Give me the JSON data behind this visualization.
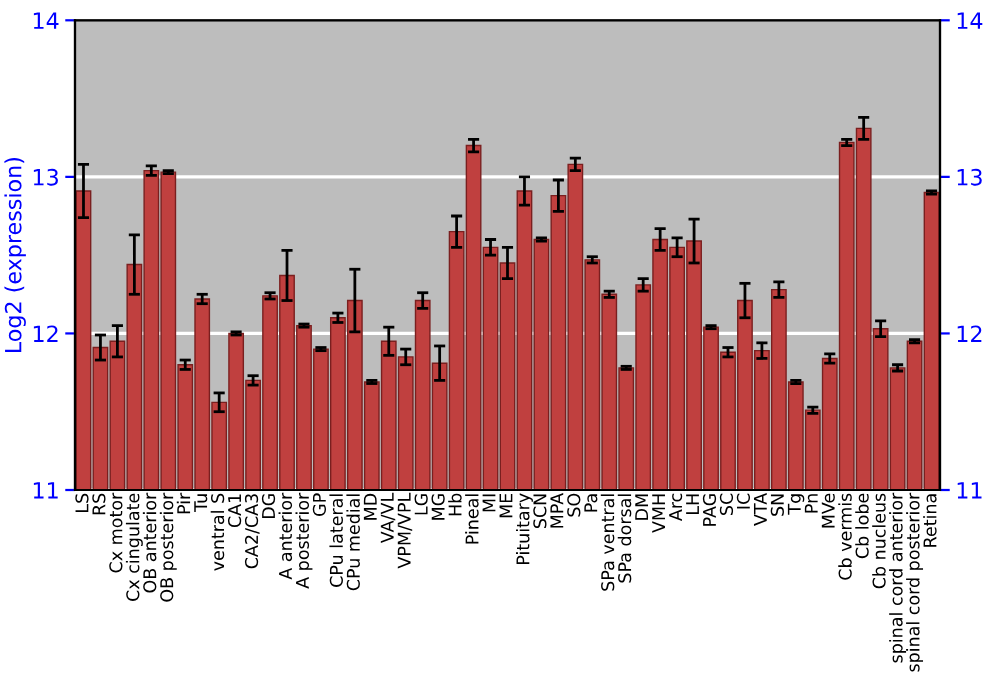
{
  "chart_data": {
    "type": "bar",
    "ylabel": "Log2 (expression)",
    "categories": [
      "LS",
      "RS",
      "Cx motor",
      "Cx cingulate",
      "OB anterior",
      "OB posterior",
      "Pir",
      "Tu",
      "ventral S",
      "CA1",
      "CA2/CA3",
      "DG",
      "A anterior",
      "A posterior",
      "GP",
      "CPu lateral",
      "CPu medial",
      "MD",
      "VA/VL",
      "VPM/VPL",
      "LG",
      "MG",
      "Hb",
      "Pineal",
      "MI",
      "ME",
      "Pituitary",
      "SCN",
      "MPA",
      "SO",
      "Pa",
      "SPa ventral",
      "SPa dorsal",
      "DM",
      "VMH",
      "Arc",
      "LH",
      "PAG",
      "SC",
      "IC",
      "VTA",
      "SN",
      "Tg",
      "Pn",
      "MVe",
      "Cb vermis",
      "Cb lobe",
      "Cb nucleus",
      "spinal cord anterior",
      "spinal cord posterior",
      "Retina"
    ],
    "values": [
      12.91,
      11.91,
      11.95,
      12.44,
      13.04,
      13.03,
      11.8,
      12.22,
      11.56,
      12.0,
      11.7,
      12.24,
      12.37,
      12.05,
      11.9,
      12.1,
      12.21,
      11.69,
      11.95,
      11.85,
      12.21,
      11.81,
      12.65,
      13.2,
      12.55,
      12.45,
      12.91,
      12.6,
      12.88,
      13.08,
      12.47,
      12.25,
      11.78,
      12.31,
      12.6,
      12.55,
      12.59,
      12.04,
      11.88,
      12.21,
      11.89,
      12.28,
      11.69,
      11.51,
      11.84,
      13.22,
      13.31,
      12.03,
      11.78,
      11.95,
      12.9
    ],
    "errors": [
      0.17,
      0.08,
      0.1,
      0.19,
      0.03,
      0.01,
      0.03,
      0.03,
      0.06,
      0.01,
      0.03,
      0.02,
      0.16,
      0.01,
      0.01,
      0.03,
      0.2,
      0.01,
      0.09,
      0.05,
      0.05,
      0.11,
      0.1,
      0.04,
      0.05,
      0.1,
      0.09,
      0.01,
      0.1,
      0.04,
      0.02,
      0.02,
      0.01,
      0.04,
      0.07,
      0.06,
      0.14,
      0.01,
      0.03,
      0.11,
      0.05,
      0.05,
      0.01,
      0.02,
      0.03,
      0.02,
      0.07,
      0.05,
      0.02,
      0.01,
      0.01
    ],
    "color": "#c0403f",
    "ylim": [
      11,
      14
    ],
    "yticks": [
      11,
      12,
      13,
      14
    ],
    "y2lim": [
      11,
      14
    ],
    "y2ticks": [
      11,
      12,
      13,
      14
    ],
    "grid": "y"
  }
}
